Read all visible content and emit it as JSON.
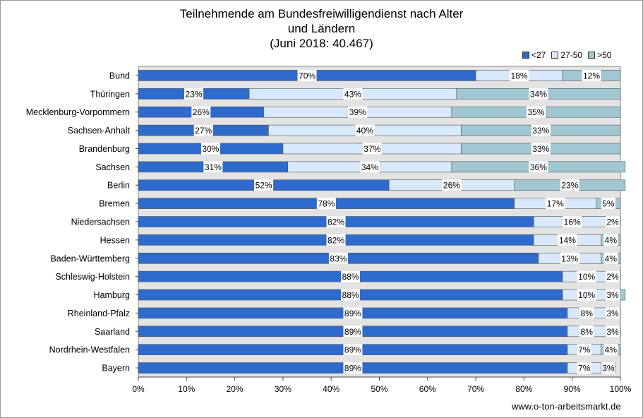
{
  "chart_data": {
    "type": "bar",
    "orientation": "horizontal",
    "stacked": true,
    "title_lines": [
      "Teilnehmende am Bundesfreiwilligendienst nach Alter",
      "und Ländern",
      "(Juni 2018: 40.467)"
    ],
    "categories": [
      "Bund",
      "Thüringen",
      "Mecklenburg-Vorpommern",
      "Sachsen-Anhalt",
      "Brandenburg",
      "Sachsen",
      "Berlin",
      "Bremen",
      "Niedersachsen",
      "Hessen",
      "Baden-Württemberg",
      "Schleswig-Holstein",
      "Hamburg",
      "Rheinland-Pfalz",
      "Saarland",
      "Nordrhein-Westfalen",
      "Bayern"
    ],
    "series": [
      {
        "name": "<27",
        "color": "#2e6bcc",
        "values": [
          70,
          23,
          26,
          27,
          30,
          31,
          52,
          78,
          82,
          82,
          83,
          88,
          88,
          89,
          89,
          89,
          89
        ],
        "labels": [
          "70%",
          "23%",
          "26%",
          "27%",
          "30%",
          "31%",
          "52%",
          "78%",
          "82%",
          "82%",
          "83%",
          "88%",
          "88%",
          "89%",
          "89%",
          "89%",
          "89%"
        ]
      },
      {
        "name": "27-50",
        "color": "#d8e9fb",
        "values": [
          18,
          43,
          39,
          40,
          37,
          34,
          26,
          17,
          16,
          14,
          13,
          10,
          10,
          8,
          8,
          7,
          7
        ],
        "labels": [
          "18%",
          "43%",
          "39%",
          "40%",
          "37%",
          "34%",
          "26%",
          "17%",
          "16%",
          "14%",
          "13%",
          "10%",
          "10%",
          "8%",
          "8%",
          "7%",
          "7%"
        ]
      },
      {
        "name": ">50",
        "color": "#9fc8d2",
        "values": [
          12,
          34,
          35,
          33,
          33,
          36,
          23,
          5,
          2,
          4,
          4,
          2,
          3,
          3,
          3,
          4,
          3
        ],
        "labels": [
          "12%",
          "34%",
          "35%",
          "33%",
          "33%",
          "36%",
          "23%",
          "5%",
          "2%",
          "4%",
          "4%",
          "2%",
          "3%",
          "3%",
          "3%",
          "4%",
          "3%"
        ]
      }
    ],
    "x_ticks": [
      "0%",
      "10%",
      "20%",
      "30%",
      "40%",
      "50%",
      "60%",
      "70%",
      "80%",
      "90%",
      "100%"
    ],
    "xlim": [
      0,
      100
    ],
    "grid": false,
    "legend_position": "top-right"
  },
  "source": "www.o-ton-arbeitsmarkt.de",
  "colors": {
    "plot_background": "#e3e3e3",
    "bar_border": "#555555"
  }
}
